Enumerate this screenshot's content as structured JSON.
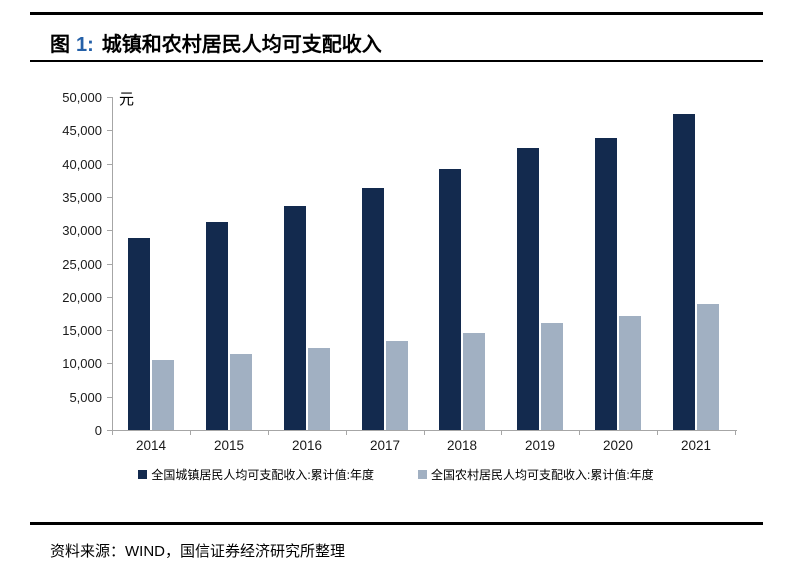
{
  "figure": {
    "caption_fig": "图",
    "caption_num": "1:",
    "caption_text": "城镇和农村居民人均可支配收入"
  },
  "chart_data": {
    "type": "bar",
    "title": "城镇和农村居民人均可支配收入",
    "unit_label": "元",
    "categories": [
      "2014",
      "2015",
      "2016",
      "2017",
      "2018",
      "2019",
      "2020",
      "2021"
    ],
    "series": [
      {
        "name": "全国城镇居民人均可支配收入:累计值:年度",
        "color": "#132A4E",
        "values": [
          28844,
          31195,
          33616,
          36396,
          39251,
          42359,
          43834,
          47412
        ]
      },
      {
        "name": "全国农村居民人均可支配收入:累计值:年度",
        "color": "#A1B0C2",
        "values": [
          10489,
          11422,
          12363,
          13432,
          14617,
          16021,
          17131,
          18931
        ]
      }
    ],
    "ylim": [
      0,
      50000
    ],
    "ytick_step": 5000,
    "ytick_labels": [
      "0",
      "5,000",
      "10,000",
      "15,000",
      "20,000",
      "25,000",
      "30,000",
      "35,000",
      "40,000",
      "45,000",
      "50,000"
    ],
    "grid": false,
    "legend_position": "bottom",
    "axis_color": "#A6A6A6"
  },
  "footer": {
    "source_text": "资料来源：WIND，国信证券经济研究所整理"
  }
}
